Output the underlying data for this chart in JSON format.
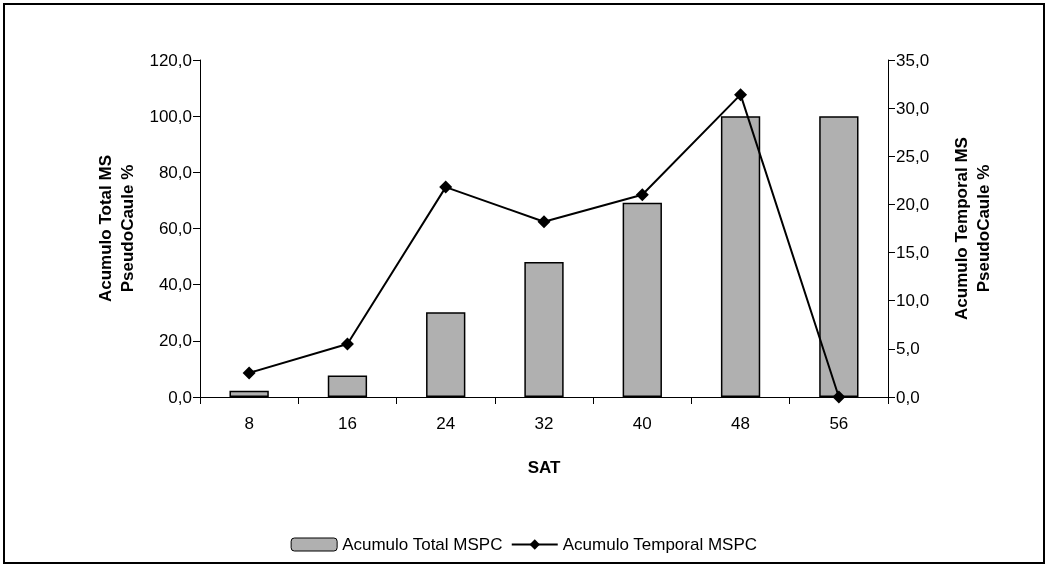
{
  "chart_data": {
    "type": "bar",
    "xlabel": "SAT",
    "ylabel": "Acumulo Total MS\nPseudoCaule %",
    "y2label": "Acumulo Temporal MS\nPseudoCaule %",
    "categories": [
      "8",
      "16",
      "24",
      "32",
      "40",
      "48",
      "56"
    ],
    "series": [
      {
        "name": "Acumulo Total MSPC",
        "color": "#b0b0b0",
        "values": [
          2.2,
          7.7,
          30.2,
          48.1,
          69.2,
          100,
          100
        ]
      },
      {
        "name": "Acumulo Temporal MSPC",
        "type": "line",
        "axis": "y2",
        "color": "#000000",
        "marker": "diamond",
        "values": [
          2.5,
          5.5,
          21.8,
          18.2,
          21.0,
          31.4,
          0
        ]
      }
    ],
    "ylim": [
      0,
      120
    ],
    "yticks": [
      {
        "value": 0,
        "label": "0,0"
      },
      {
        "value": 20,
        "label": "20,0"
      },
      {
        "value": 40,
        "label": "40,0"
      },
      {
        "value": 60,
        "label": "60,0"
      },
      {
        "value": 80,
        "label": "80,0"
      },
      {
        "value": 100,
        "label": "100,0"
      },
      {
        "value": 120,
        "label": "120,0"
      }
    ],
    "y2lim": [
      0,
      35
    ],
    "y2ticks": [
      {
        "value": 0,
        "label": "0,0"
      },
      {
        "value": 5,
        "label": "5,0"
      },
      {
        "value": 10,
        "label": "10,0"
      },
      {
        "value": 15,
        "label": "15,0"
      },
      {
        "value": 20,
        "label": "20,0"
      },
      {
        "value": 25,
        "label": "25,0"
      },
      {
        "value": 30,
        "label": "30,0"
      },
      {
        "value": 35,
        "label": "35,0"
      }
    ],
    "grid": false,
    "legend": "bottom"
  }
}
